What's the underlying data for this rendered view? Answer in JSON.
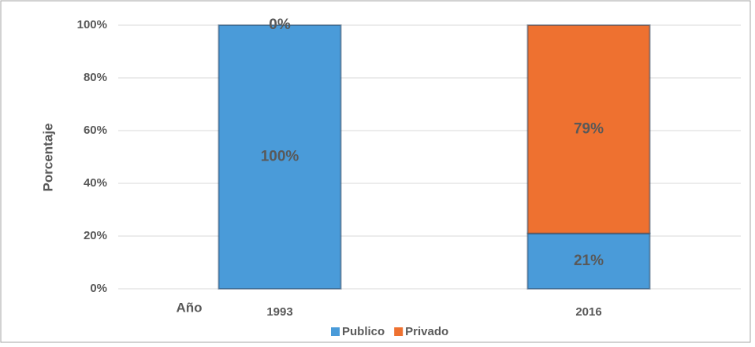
{
  "chart_data": {
    "type": "stacked_bar",
    "categories": [
      "1993",
      "2016"
    ],
    "x_label": "Año",
    "y_label": "Porcentaje",
    "series": [
      {
        "name": "Publico",
        "color": "#4a9bd9",
        "values": [
          100,
          21
        ],
        "value_labels": [
          "100%",
          "21%"
        ]
      },
      {
        "name": "Privado",
        "color": "#ee7130",
        "values": [
          0,
          79
        ],
        "value_labels": [
          "0%",
          "79%"
        ]
      }
    ],
    "ylim": [
      0,
      100
    ],
    "yticks": [
      {
        "value": 0,
        "label": "0%"
      },
      {
        "value": 20,
        "label": "20%"
      },
      {
        "value": 40,
        "label": "40%"
      },
      {
        "value": 60,
        "label": "60%"
      },
      {
        "value": 80,
        "label": "80%"
      },
      {
        "value": 100,
        "label": "100%"
      }
    ],
    "grid": true,
    "legend": "bottom"
  }
}
